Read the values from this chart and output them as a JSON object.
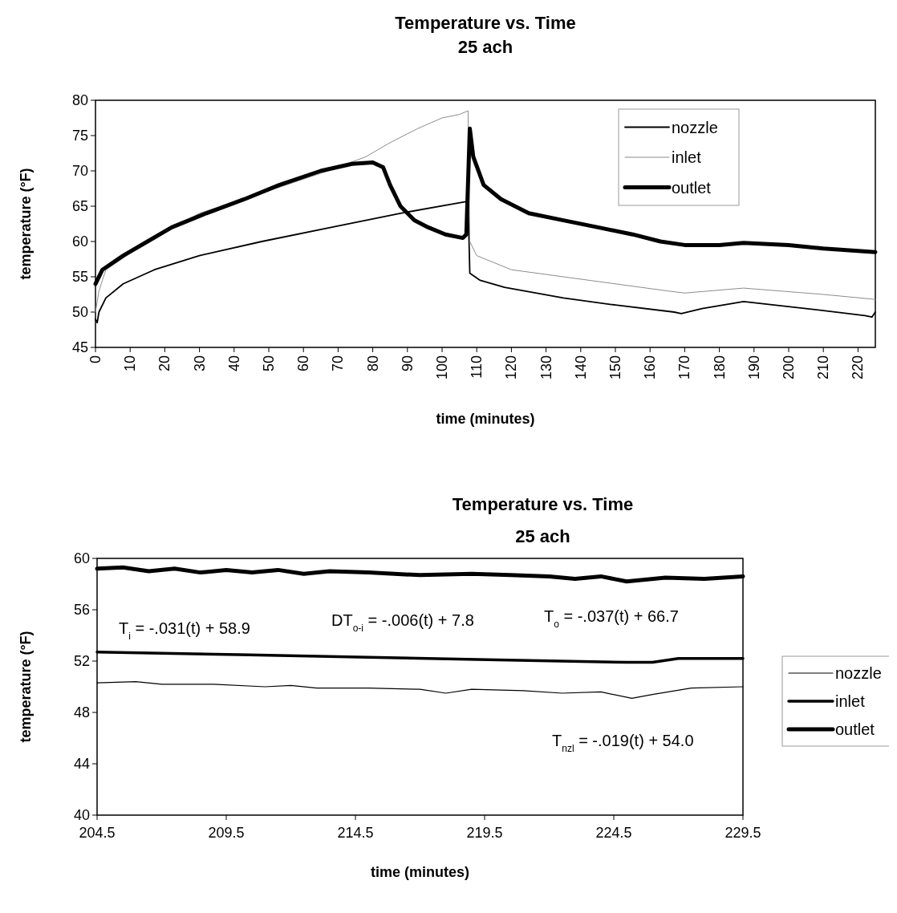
{
  "chart_data": [
    {
      "type": "line",
      "title": "Temperature vs. Time",
      "subtitle": "25 ach",
      "xlabel": "time (minutes)",
      "ylabel": "temperature (°F)",
      "xlim": [
        0,
        225
      ],
      "xticks": [
        0,
        10,
        20,
        30,
        40,
        50,
        60,
        70,
        80,
        90,
        100,
        110,
        120,
        130,
        140,
        150,
        160,
        170,
        180,
        190,
        200,
        210,
        220
      ],
      "ylim": [
        45,
        80
      ],
      "yticks": [
        45,
        50,
        55,
        60,
        65,
        70,
        75,
        80
      ],
      "grid": false,
      "legend": "top right",
      "marker": "none",
      "line_style": "solid",
      "series": [
        {
          "name": "nozzle",
          "color": "#000000",
          "x": [
            0,
            0.5,
            1,
            3,
            8,
            17,
            30,
            48,
            68,
            88,
            107.5,
            108,
            111,
            118,
            135,
            150,
            167,
            169,
            175,
            187,
            205,
            222,
            224,
            225
          ],
          "values": [
            49,
            48.5,
            50,
            52,
            54,
            56,
            58,
            60,
            62,
            64,
            65.7,
            55.5,
            54.5,
            53.5,
            52,
            51,
            50,
            49.8,
            50.5,
            51.5,
            50.5,
            49.5,
            49.3,
            50
          ]
        },
        {
          "name": "inlet",
          "color": "#8c8c8c",
          "x": [
            0,
            1,
            3,
            15,
            30,
            55,
            67,
            78,
            85,
            93,
            100,
            105,
            107.5,
            108,
            110,
            120,
            135,
            150,
            165,
            170,
            187,
            210,
            225
          ],
          "values": [
            50,
            53,
            56,
            60,
            64,
            68,
            70,
            72,
            74,
            76,
            77.5,
            78,
            78.5,
            60,
            58,
            56,
            55,
            54,
            53,
            52.7,
            53.4,
            52.5,
            51.8
          ]
        },
        {
          "name": "outlet",
          "color": "#000000",
          "x": [
            0,
            2,
            8,
            15,
            22,
            32,
            43,
            53,
            65,
            74,
            80,
            83,
            85,
            88,
            92,
            96,
            101,
            106,
            107,
            108,
            109,
            112,
            117,
            125,
            135,
            145,
            155,
            163,
            170,
            180,
            187,
            200,
            210,
            225
          ],
          "values": [
            54,
            56,
            58,
            60,
            62,
            64,
            66,
            68,
            70,
            71,
            71.2,
            70.5,
            68,
            65,
            63,
            62,
            61,
            60.5,
            61,
            76,
            72,
            68,
            66,
            64,
            63,
            62,
            61,
            60,
            59.5,
            59.5,
            59.8,
            59.5,
            59,
            58.5
          ]
        }
      ]
    },
    {
      "type": "line",
      "title": "Temperature vs. Time",
      "subtitle": "25 ach",
      "xlabel": "time (minutes)",
      "ylabel": "temperature (°F)",
      "xlim": [
        204.5,
        229.5
      ],
      "xticks": [
        204.5,
        209.5,
        214.5,
        219.5,
        224.5,
        229.5
      ],
      "ylim": [
        40,
        60
      ],
      "yticks": [
        40,
        44,
        48,
        52,
        56,
        60
      ],
      "grid": false,
      "legend": "right",
      "marker": "none",
      "line_style": "solid",
      "annotations": [
        "T$_{i}$ = -.031(t) + 58.9",
        "DT$_{o-i}$ = -.006(t) + 7.8",
        "T$_{o}$ = -.037(t) + 66.7",
        "T$_{nzl}$ = -.019(t) + 54.0"
      ],
      "series": [
        {
          "name": "nozzle",
          "color": "#000000",
          "x": [
            204.5,
            206,
            207,
            209,
            211,
            212,
            213,
            215,
            217,
            218,
            219,
            221,
            222.5,
            224,
            225.2,
            226,
            227.5,
            229.5
          ],
          "values": [
            50.3,
            50.4,
            50.2,
            50.2,
            50,
            50.1,
            49.9,
            49.9,
            49.8,
            49.5,
            49.8,
            49.7,
            49.5,
            49.6,
            49.1,
            49.4,
            49.9,
            50
          ]
        },
        {
          "name": "inlet",
          "color": "#000000",
          "x": [
            204.5,
            210,
            215,
            220,
            225,
            226,
            227,
            229.5
          ],
          "values": [
            52.7,
            52.5,
            52.3,
            52.1,
            51.9,
            51.9,
            52.2,
            52.2
          ]
        },
        {
          "name": "outlet",
          "color": "#000000",
          "x": [
            204.5,
            205.5,
            206.5,
            207.5,
            208.5,
            209.5,
            210.5,
            211.5,
            212.5,
            213.5,
            215,
            217,
            219,
            220.5,
            222,
            223,
            224,
            225,
            226.5,
            228,
            229.5
          ],
          "values": [
            59.2,
            59.3,
            59,
            59.2,
            58.9,
            59.1,
            58.9,
            59.1,
            58.8,
            59,
            58.9,
            58.7,
            58.8,
            58.7,
            58.6,
            58.4,
            58.6,
            58.2,
            58.5,
            58.4,
            58.6
          ]
        }
      ]
    }
  ]
}
